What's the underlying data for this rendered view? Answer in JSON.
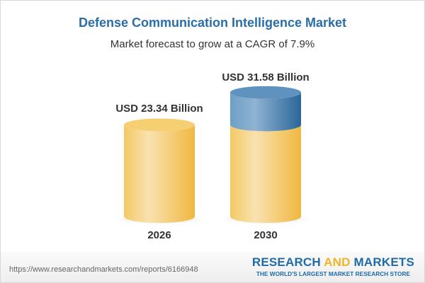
{
  "chart_data": {
    "type": "bar",
    "title": "Defense Communication Intelligence Market",
    "subtitle": "Market forecast to grow at a CAGR of 7.9%",
    "categories": [
      "2026",
      "2030"
    ],
    "values": [
      23.34,
      31.58
    ],
    "data_labels": [
      "USD 23.34 Billion",
      "USD 31.58 Billion"
    ],
    "style": "3d-cylinder",
    "colors": {
      "base": "#f2c45a",
      "growth": "#3f7db0"
    }
  },
  "footer": {
    "url": "https://www.researchandmarkets.com/reports/6166948",
    "brand_research": "RESEARCH ",
    "brand_and": "AND",
    "brand_markets": " MARKETS",
    "brand_tagline": "THE WORLD'S LARGEST MARKET RESEARCH STORE"
  }
}
